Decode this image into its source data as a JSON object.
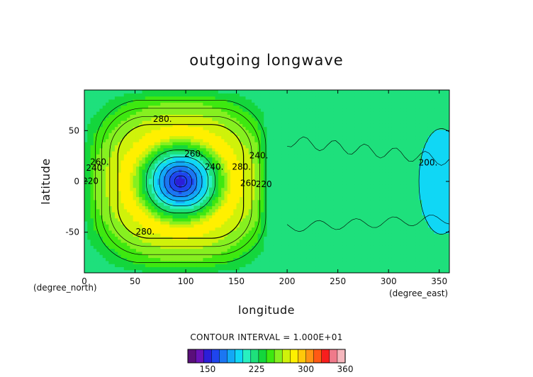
{
  "chart_data": {
    "type": "heatmap",
    "title": "outgoing longwave",
    "xlabel": "longitude",
    "ylabel": "latitude",
    "x_unit": "(degree_east)",
    "y_unit": "(degree_north)",
    "xlim": [
      0,
      360
    ],
    "ylim": [
      -90,
      90
    ],
    "x_ticks": [
      0,
      50,
      100,
      150,
      200,
      250,
      300,
      350
    ],
    "y_ticks": [
      -50,
      0,
      50
    ],
    "contour_interval_text": "CONTOUR INTERVAL = 1.000E+01",
    "contour_labels": [
      {
        "text": "280.",
        "x": 77,
        "y": 61
      },
      {
        "text": "280.",
        "x": 60,
        "y": -50
      },
      {
        "text": "280.",
        "x": 155,
        "y": 14
      },
      {
        "text": "260.",
        "x": 163,
        "y": -2
      },
      {
        "text": "260.",
        "x": 15,
        "y": 19
      },
      {
        "text": "260.",
        "x": 108,
        "y": 27
      },
      {
        "text": "240.",
        "x": 128,
        "y": 14
      },
      {
        "text": "240.",
        "x": 172,
        "y": 25
      },
      {
        "text": "240.",
        "x": 11,
        "y": 13
      },
      {
        "text": "220",
        "x": 177,
        "y": -3
      },
      {
        "text": "220",
        "x": 6,
        "y": 0
      },
      {
        "text": "200.",
        "x": 339,
        "y": 18
      }
    ],
    "levels": [
      130,
      140,
      150,
      160,
      170,
      180,
      190,
      200,
      210,
      220,
      230,
      240,
      250,
      260,
      270,
      280,
      290,
      300,
      310,
      320,
      330,
      340,
      350,
      360
    ],
    "colorbar": {
      "min": 120,
      "max": 360,
      "tick_values": [
        150,
        225,
        300,
        360
      ],
      "tick_labels": [
        "150",
        "225",
        "300",
        "360"
      ],
      "colors": [
        "#5a0f7a",
        "#6a12b8",
        "#2c1ed8",
        "#1f45ee",
        "#1b76f2",
        "#13a8f6",
        "#10d7f5",
        "#28f0c0",
        "#1ee07c",
        "#14d63c",
        "#3ee810",
        "#86f020",
        "#cff20a",
        "#fff000",
        "#ffc80a",
        "#ff9414",
        "#ff5a14",
        "#f81e1e",
        "#f07a8a",
        "#f5b7bd"
      ]
    },
    "field": {
      "background_value": 225,
      "west_mean_value": 255,
      "east_cool_patch_value": 198,
      "vortex_center": [
        95,
        0
      ],
      "vortex_min_value": 150,
      "ring_peak_value": 285,
      "ring_radius_deg": 52
    }
  }
}
